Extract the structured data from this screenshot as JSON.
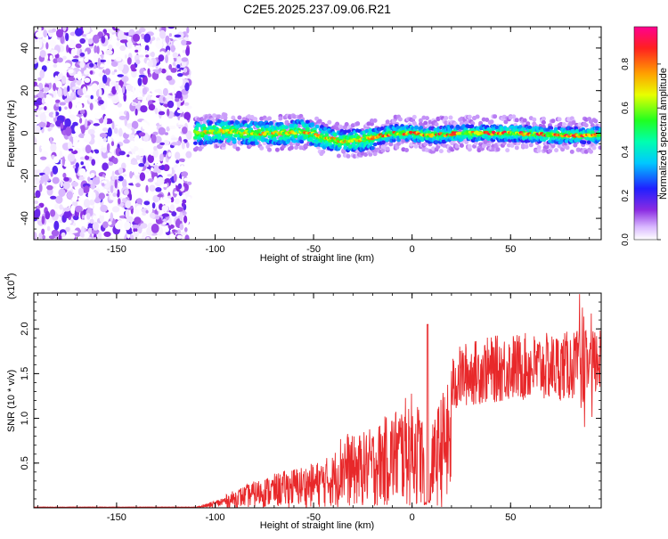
{
  "title": "C2E5.2025.237.09.06.R21",
  "chart_data": [
    {
      "type": "heatmap",
      "xlabel": "Height of straight line (km)",
      "ylabel": "Frequency (Hz)",
      "xlim": [
        -192,
        96
      ],
      "ylim": [
        -50,
        50
      ],
      "xticks": [
        -150,
        -100,
        -50,
        0,
        50
      ],
      "yticks": [
        -40,
        -20,
        0,
        20,
        40
      ],
      "colorbar": {
        "label": "Normalized spectral amplitude",
        "range": [
          0,
          0.97
        ],
        "ticks": [
          0.0,
          0.2,
          0.4,
          0.6,
          0.8
        ]
      },
      "description_points": {
        "noise_region_x": [
          -192,
          -113
        ],
        "signal_start_x": -110,
        "signal_center_freq": [
          [
            -110,
            0
          ],
          [
            -95,
            1
          ],
          [
            -80,
            0
          ],
          [
            -65,
            0
          ],
          [
            -55,
            1
          ],
          [
            -45,
            -2
          ],
          [
            -35,
            -4
          ],
          [
            -25,
            -3
          ],
          [
            -15,
            -1
          ],
          [
            -8,
            0
          ],
          [
            0,
            0
          ],
          [
            10,
            -1
          ],
          [
            25,
            0
          ],
          [
            50,
            0
          ],
          [
            75,
            -1
          ],
          [
            96,
            -1
          ]
        ]
      }
    },
    {
      "type": "line",
      "xlabel": "Height of straight line (km)",
      "ylabel": "SNR (10 * v/v)",
      "yscale_label": "(x10",
      "yscale_exp": "4",
      "yscale_close": ")",
      "xlim": [
        -192,
        96
      ],
      "ylim": [
        0,
        24000
      ],
      "xticks": [
        -150,
        -100,
        -50,
        0,
        50
      ],
      "yticks": [
        0.5,
        1.0,
        1.5,
        2.0
      ],
      "ytick_labels": [
        "0.5",
        "1.0",
        "1.5",
        "2.0"
      ],
      "color": "#e8282a",
      "envelope": [
        [
          -192,
          50
        ],
        [
          -110,
          80
        ],
        [
          -100,
          800
        ],
        [
          -90,
          2000
        ],
        [
          -80,
          3000
        ],
        [
          -70,
          3800
        ],
        [
          -60,
          4500
        ],
        [
          -50,
          5000
        ],
        [
          -40,
          6000
        ],
        [
          -35,
          9000
        ],
        [
          -30,
          8000
        ],
        [
          -20,
          9000
        ],
        [
          -10,
          11000
        ],
        [
          0,
          13000
        ],
        [
          5,
          11000
        ],
        [
          8,
          300
        ],
        [
          10,
          9000
        ],
        [
          15,
          13000
        ],
        [
          20,
          14500
        ],
        [
          25,
          16000
        ],
        [
          35,
          16500
        ],
        [
          50,
          17000
        ],
        [
          70,
          17000
        ],
        [
          96,
          17500
        ]
      ]
    }
  ]
}
